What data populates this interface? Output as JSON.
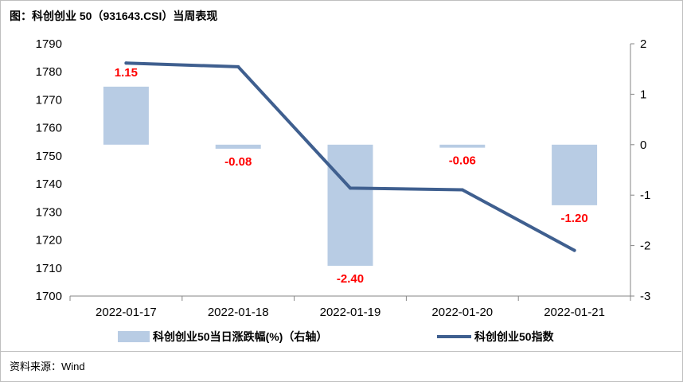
{
  "header": {
    "title": "图：科创创业 50（931643.CSI）当周表现"
  },
  "footer": {
    "source": "资料来源：Wind"
  },
  "chart_data": {
    "type": "bar+line",
    "categories": [
      "2022-01-17",
      "2022-01-18",
      "2022-01-19",
      "2022-01-20",
      "2022-01-21"
    ],
    "series": [
      {
        "name": "科创创业50当日涨跌幅(%)（右轴）",
        "type": "bar",
        "axis": "right",
        "values": [
          1.15,
          -0.08,
          -2.4,
          -0.06,
          -1.2
        ],
        "labels": [
          "1.15",
          "-0.08",
          "-2.40",
          "-0.06",
          "-1.20"
        ],
        "color": "#b8cce4"
      },
      {
        "name": "科创创业50指数",
        "type": "line",
        "axis": "left",
        "values": [
          1783.1,
          1781.8,
          1738.5,
          1737.9,
          1716.3
        ],
        "color": "#3f5f8f"
      }
    ],
    "left_axis": {
      "min": 1700,
      "max": 1790,
      "step": 10,
      "ticks": [
        "1700",
        "1710",
        "1720",
        "1730",
        "1740",
        "1750",
        "1760",
        "1770",
        "1780",
        "1790"
      ]
    },
    "right_axis": {
      "min": -3,
      "max": 2,
      "step": 1,
      "ticks": [
        "-3",
        "-2",
        "-1",
        "0",
        "1",
        "2"
      ]
    },
    "legend": "bottom",
    "grid": false
  }
}
